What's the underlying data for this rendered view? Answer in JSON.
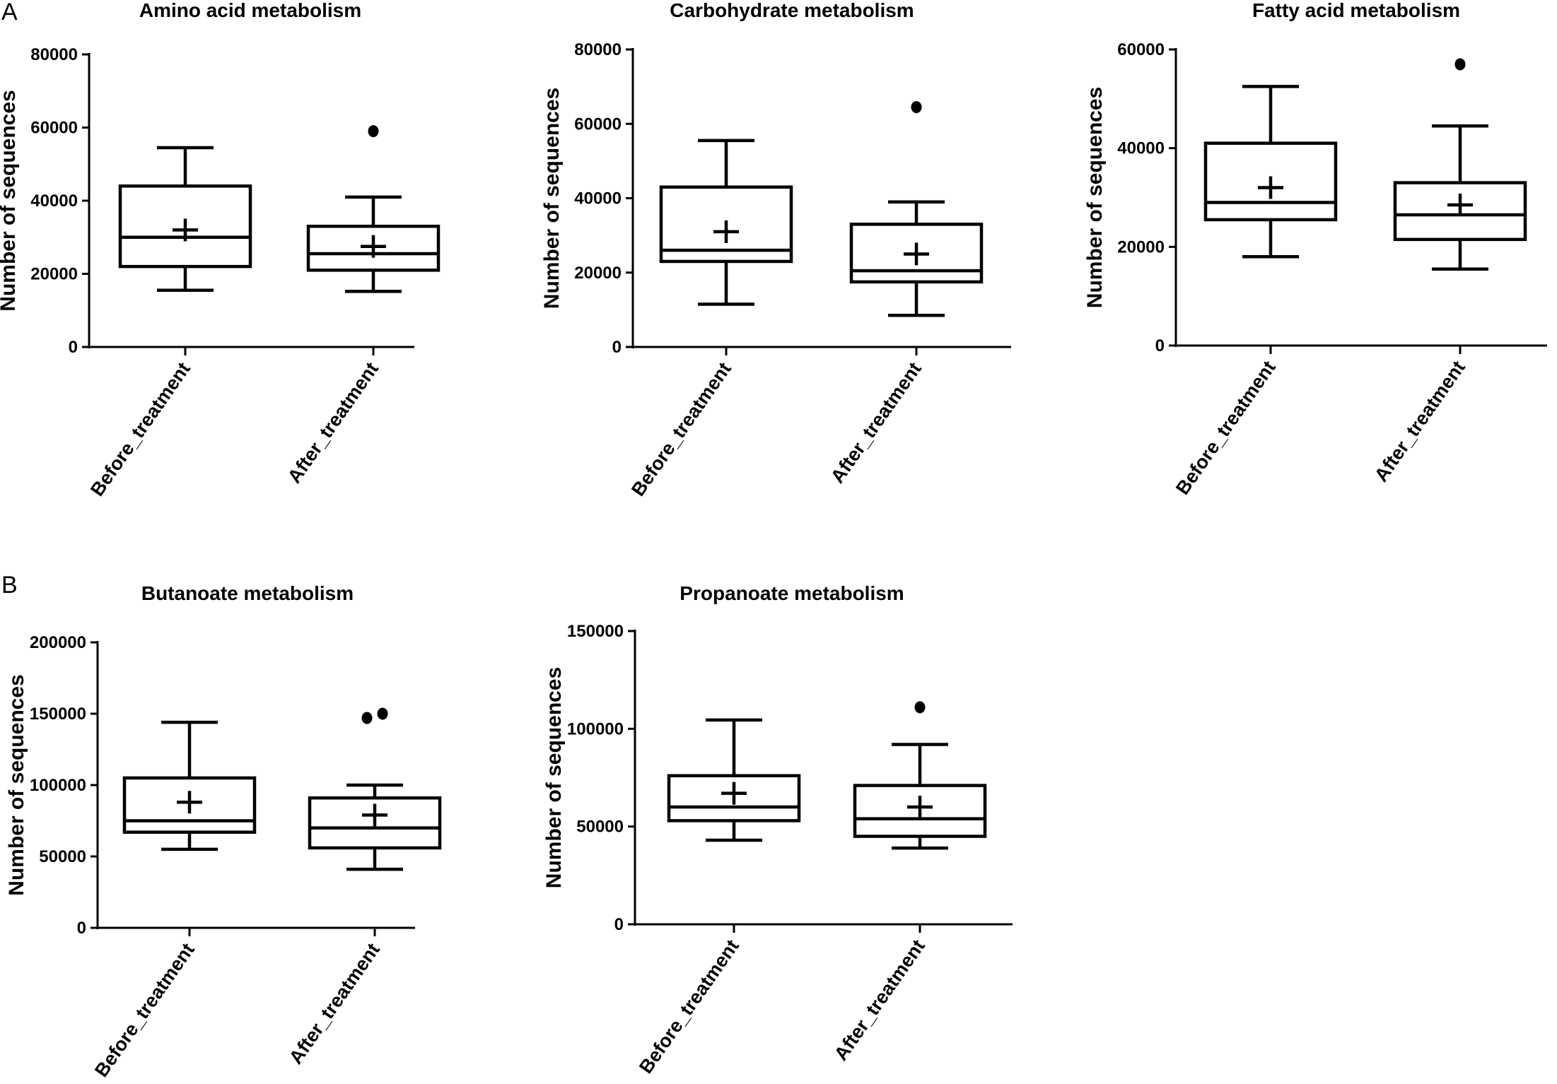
{
  "panel_labels": [
    "A",
    "B"
  ],
  "chart_data": [
    {
      "type": "box",
      "panel": "A",
      "title": "Amino acid metabolism",
      "ylabel": "Number of sequences",
      "ylim": [
        0,
        80000
      ],
      "yticks": [
        0,
        20000,
        40000,
        60000,
        80000
      ],
      "ytick_labels": [
        "0",
        "20000",
        "40000",
        "60000",
        "80000"
      ],
      "categories": [
        "Before_treatment",
        "After_treatment"
      ],
      "boxes": [
        {
          "whisker_low": 15500,
          "q1": 22000,
          "median": 30000,
          "q3": 44000,
          "whisker_high": 54500,
          "mean": 32000,
          "outliers": []
        },
        {
          "whisker_low": 15200,
          "q1": 21000,
          "median": 25500,
          "q3": 33000,
          "whisker_high": 41000,
          "mean": 27500,
          "outliers": [
            59000
          ]
        }
      ]
    },
    {
      "type": "box",
      "panel": "A",
      "title": "Carbohydrate metabolism",
      "ylabel": "Number of sequences",
      "ylim": [
        0,
        80000
      ],
      "yticks": [
        0,
        20000,
        40000,
        60000,
        80000
      ],
      "ytick_labels": [
        "0",
        "20000",
        "40000",
        "60000",
        "80000"
      ],
      "categories": [
        "Before_treatment",
        "After_treatment"
      ],
      "boxes": [
        {
          "whisker_low": 11500,
          "q1": 23000,
          "median": 26000,
          "q3": 43000,
          "whisker_high": 55500,
          "mean": 31000,
          "outliers": []
        },
        {
          "whisker_low": 8500,
          "q1": 17500,
          "median": 20500,
          "q3": 33000,
          "whisker_high": 39000,
          "mean": 25000,
          "outliers": [
            64500
          ]
        }
      ]
    },
    {
      "type": "box",
      "panel": "A",
      "title": "Fatty acid metabolism",
      "ylabel": "Number of sequences",
      "ylim": [
        0,
        60000
      ],
      "yticks": [
        0,
        20000,
        40000,
        60000
      ],
      "ytick_labels": [
        "0",
        "20000",
        "40000",
        "60000"
      ],
      "categories": [
        "Before_treatment",
        "After_treatment"
      ],
      "boxes": [
        {
          "whisker_low": 18000,
          "q1": 25500,
          "median": 29000,
          "q3": 41000,
          "whisker_high": 52500,
          "mean": 32000,
          "outliers": []
        },
        {
          "whisker_low": 15500,
          "q1": 21500,
          "median": 26500,
          "q3": 33000,
          "whisker_high": 44500,
          "mean": 28500,
          "outliers": [
            57000
          ]
        }
      ]
    },
    {
      "type": "box",
      "panel": "B",
      "title": "Butanoate metabolism",
      "ylabel": "Number of sequences",
      "ylim": [
        0,
        200000
      ],
      "yticks": [
        0,
        50000,
        100000,
        150000,
        200000
      ],
      "ytick_labels": [
        "0",
        "50000",
        "100000",
        "150000",
        "200000"
      ],
      "categories": [
        "Before_treatment",
        "After_treatment"
      ],
      "boxes": [
        {
          "whisker_low": 55000,
          "q1": 67000,
          "median": 75000,
          "q3": 105000,
          "whisker_high": 144000,
          "mean": 88000,
          "outliers": []
        },
        {
          "whisker_low": 41000,
          "q1": 56000,
          "median": 70000,
          "q3": 91000,
          "whisker_high": 100000,
          "mean": 79000,
          "outliers": [
            147000,
            150000
          ]
        }
      ]
    },
    {
      "type": "box",
      "panel": "B",
      "title": "Propanoate metabolism",
      "ylabel": "Number of sequences",
      "ylim": [
        0,
        150000
      ],
      "yticks": [
        0,
        50000,
        100000,
        150000
      ],
      "ytick_labels": [
        "0",
        "50000",
        "100000",
        "150000"
      ],
      "categories": [
        "Before_treatment",
        "After_treatment"
      ],
      "boxes": [
        {
          "whisker_low": 43000,
          "q1": 53000,
          "median": 60000,
          "q3": 76000,
          "whisker_high": 104500,
          "mean": 67000,
          "outliers": []
        },
        {
          "whisker_low": 39000,
          "q1": 45000,
          "median": 54000,
          "q3": 71000,
          "whisker_high": 92000,
          "mean": 60000,
          "outliers": [
            111000
          ]
        }
      ]
    }
  ]
}
